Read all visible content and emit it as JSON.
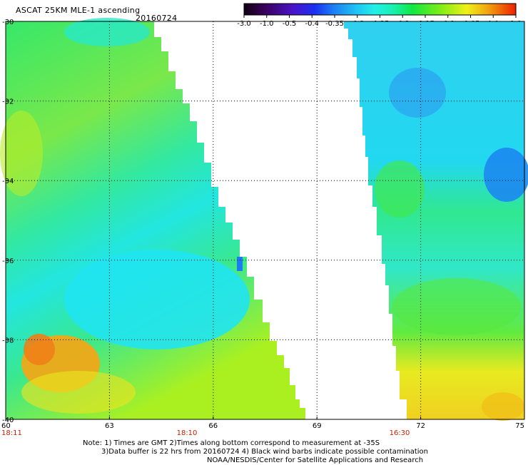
{
  "header": {
    "title": "ASCAT 25KM MLE-1 ascending",
    "date": "20160724"
  },
  "colorbar": {
    "labels": [
      "-3.0",
      "-1.0",
      "-0.5",
      "-0.4",
      "-0.35",
      "-0.3",
      "-0.25",
      "-0.2",
      "-0.15",
      "-0.1",
      "-0.05",
      "0.0",
      "1.0"
    ],
    "colors": [
      "#120012",
      "#3a005e",
      "#5a10c8",
      "#1a3cf0",
      "#1c8cf4",
      "#21e0f0",
      "#18f0c0",
      "#10e840",
      "#7ced16",
      "#e8f018",
      "#f0a810",
      "#f06000",
      "#f01e00"
    ]
  },
  "map": {
    "lat_labels": [
      "-30",
      "-32",
      "-34",
      "-36",
      "-38",
      "-40"
    ],
    "lon_labels": [
      "60",
      "63",
      "66",
      "69",
      "72",
      "75"
    ],
    "time_labels": [
      "18:11",
      "18:10",
      "16:30"
    ],
    "time_color": "#c81e00"
  },
  "notes": {
    "line1": "Note: 1) Times are GMT 2)Times along bottom correspond to measurement at -35S",
    "line2": "3)Data buffer is 22 hrs from 20160724 4) Black wind barbs indicate possible contamination",
    "line3": "NOAA/NESDIS/Center for Satellite Applications and Research"
  }
}
